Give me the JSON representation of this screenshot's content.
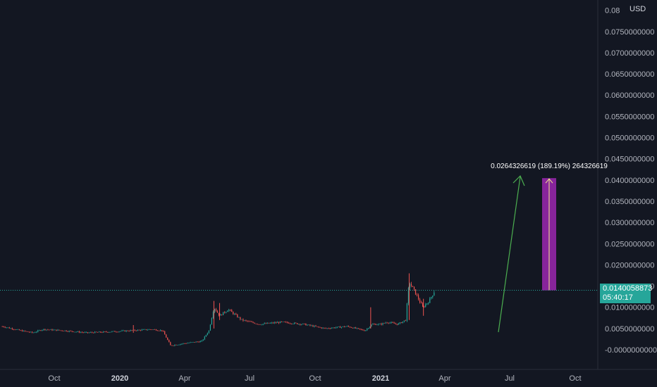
{
  "currency": "USD",
  "last_price": {
    "value": "0.0140058873",
    "countdown": "05:40:17",
    "color": "#26a69a"
  },
  "measure": {
    "label": "0.0264326619 (189.19%) 264326619",
    "from": 0.0140058873,
    "to": 0.0404385492,
    "color": "#9c27b0"
  },
  "arrow_color": "#4caf50",
  "chart_data": {
    "type": "candlestick",
    "grid": false,
    "y_range": [
      -0.0025,
      0.081
    ],
    "y_ticks": [
      {
        "value": 0.0,
        "label": "-0.0000000000"
      },
      {
        "value": 0.005,
        "label": "0.0050000000"
      },
      {
        "value": 0.01,
        "label": "0.0100000000"
      },
      {
        "value": 0.015,
        "label": "0.0150000000"
      },
      {
        "value": 0.02,
        "label": "0.0200000000"
      },
      {
        "value": 0.025,
        "label": "0.0250000000"
      },
      {
        "value": 0.03,
        "label": "0.0300000000"
      },
      {
        "value": 0.035,
        "label": "0.0350000000"
      },
      {
        "value": 0.04,
        "label": "0.0400000000"
      },
      {
        "value": 0.045,
        "label": "0.0450000000"
      },
      {
        "value": 0.05,
        "label": "0.0500000000"
      },
      {
        "value": 0.055,
        "label": "0.0550000000"
      },
      {
        "value": 0.06,
        "label": "0.0600000000"
      },
      {
        "value": 0.065,
        "label": "0.0650000000"
      },
      {
        "value": 0.07,
        "label": "0.0700000000"
      },
      {
        "value": 0.075,
        "label": "0.0750000000"
      },
      {
        "value": 0.08,
        "label": "0.08"
      }
    ],
    "x_ticks": [
      {
        "date": "2019-10-01",
        "label": "Oct",
        "year": false
      },
      {
        "date": "2020-01-01",
        "label": "2020",
        "year": true
      },
      {
        "date": "2020-04-01",
        "label": "Apr",
        "year": false
      },
      {
        "date": "2020-07-01",
        "label": "Jul",
        "year": false
      },
      {
        "date": "2020-10-01",
        "label": "Oct",
        "year": false
      },
      {
        "date": "2021-01-01",
        "label": "2021",
        "year": true
      },
      {
        "date": "2021-04-01",
        "label": "Apr",
        "year": false
      },
      {
        "date": "2021-07-01",
        "label": "Jul",
        "year": false
      },
      {
        "date": "2021-10-01",
        "label": "Oct",
        "year": false
      }
    ],
    "x_range": [
      "2019-07-20",
      "2021-11-15"
    ],
    "price_path": [
      {
        "date": "2019-07-20",
        "price": 0.0055
      },
      {
        "date": "2019-08-15",
        "price": 0.0045
      },
      {
        "date": "2019-09-01",
        "price": 0.004
      },
      {
        "date": "2019-09-15",
        "price": 0.0048
      },
      {
        "date": "2019-10-15",
        "price": 0.0045
      },
      {
        "date": "2019-11-15",
        "price": 0.004
      },
      {
        "date": "2019-12-15",
        "price": 0.0042
      },
      {
        "date": "2020-01-15",
        "price": 0.0045
      },
      {
        "date": "2020-02-15",
        "price": 0.0048
      },
      {
        "date": "2020-03-01",
        "price": 0.0045
      },
      {
        "date": "2020-03-12",
        "price": 0.001
      },
      {
        "date": "2020-04-01",
        "price": 0.0015
      },
      {
        "date": "2020-04-25",
        "price": 0.002
      },
      {
        "date": "2020-05-05",
        "price": 0.0045
      },
      {
        "date": "2020-05-12",
        "price": 0.01
      },
      {
        "date": "2020-05-20",
        "price": 0.008
      },
      {
        "date": "2020-06-01",
        "price": 0.0095
      },
      {
        "date": "2020-06-20",
        "price": 0.007
      },
      {
        "date": "2020-07-15",
        "price": 0.006
      },
      {
        "date": "2020-08-15",
        "price": 0.0065
      },
      {
        "date": "2020-09-15",
        "price": 0.006
      },
      {
        "date": "2020-10-15",
        "price": 0.005
      },
      {
        "date": "2020-11-15",
        "price": 0.0055
      },
      {
        "date": "2020-12-10",
        "price": 0.0045
      },
      {
        "date": "2020-12-20",
        "price": 0.006
      },
      {
        "date": "2021-01-01",
        "price": 0.006
      },
      {
        "date": "2021-01-10",
        "price": 0.0065
      },
      {
        "date": "2021-01-25",
        "price": 0.006
      },
      {
        "date": "2021-02-05",
        "price": 0.007
      },
      {
        "date": "2021-02-10",
        "price": 0.016
      },
      {
        "date": "2021-02-20",
        "price": 0.013
      },
      {
        "date": "2021-03-01",
        "price": 0.01
      },
      {
        "date": "2021-03-10",
        "price": 0.0115
      },
      {
        "date": "2021-03-18",
        "price": 0.014
      }
    ],
    "spikes": [
      {
        "date": "2020-01-20",
        "high": 0.0058,
        "low": 0.004
      },
      {
        "date": "2020-05-12",
        "high": 0.0115,
        "low": 0.005
      },
      {
        "date": "2020-05-20",
        "high": 0.011,
        "low": 0.007
      },
      {
        "date": "2020-12-18",
        "high": 0.01,
        "low": 0.005
      },
      {
        "date": "2021-02-10",
        "high": 0.018,
        "low": 0.007
      },
      {
        "date": "2021-03-02",
        "high": 0.012,
        "low": 0.008
      }
    ]
  }
}
